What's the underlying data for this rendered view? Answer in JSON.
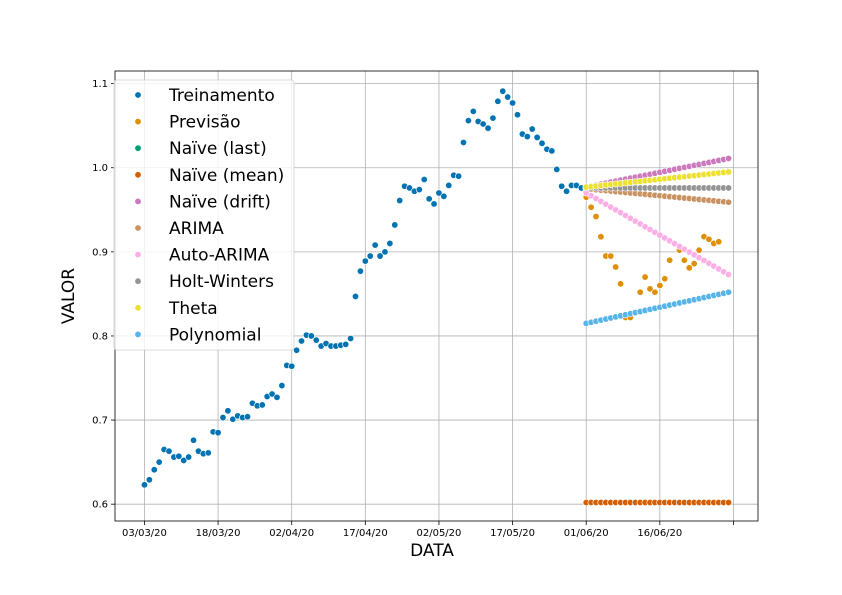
{
  "chart_data": {
    "type": "scatter",
    "title": "",
    "xlabel": "DATA",
    "ylabel": "VALOR",
    "x_tick_labels": [
      "03/03/20",
      "18/03/20",
      "02/04/20",
      "17/04/20",
      "02/05/20",
      "17/05/20",
      "01/06/20",
      "16/06/20",
      ""
    ],
    "x_tick_dates": [
      "2020-03-03",
      "2020-03-18",
      "2020-04-02",
      "2020-04-17",
      "2020-05-02",
      "2020-05-17",
      "2020-06-01",
      "2020-06-16",
      "2020-07-01"
    ],
    "y_tick_labels": [
      "0.6",
      "0.7",
      "0.8",
      "0.9",
      "1.0",
      "1.1"
    ],
    "xlim": [
      "2020-02-26",
      "2020-07-06"
    ],
    "ylim": [
      0.58,
      1.115
    ],
    "grid": true,
    "legend_position": "upper-left",
    "series": [
      {
        "name": "Treinamento",
        "color": "#0173b2",
        "x_start": "2020-03-03",
        "values": [
          0.623,
          0.629,
          0.641,
          0.65,
          0.665,
          0.663,
          0.656,
          0.657,
          0.652,
          0.656,
          0.676,
          0.663,
          0.66,
          0.661,
          0.686,
          0.685,
          0.703,
          0.711,
          0.701,
          0.705,
          0.703,
          0.704,
          0.72,
          0.717,
          0.718,
          0.728,
          0.731,
          0.727,
          0.741,
          0.765,
          0.764,
          0.783,
          0.794,
          0.801,
          0.8,
          0.795,
          0.788,
          0.791,
          0.788,
          0.788,
          0.789,
          0.79,
          0.797,
          0.847,
          0.877,
          0.889,
          0.895,
          0.908,
          0.895,
          0.9,
          0.91,
          0.932,
          0.961,
          0.978,
          0.976,
          0.972,
          0.974,
          0.986,
          0.963,
          0.957,
          0.97,
          0.966,
          0.979,
          0.991,
          0.99,
          1.03,
          1.056,
          1.067,
          1.055,
          1.052,
          1.047,
          1.059,
          1.079,
          1.091,
          1.084,
          1.077,
          1.063,
          1.04,
          1.037,
          1.046,
          1.036,
          1.029,
          1.022,
          1.02,
          0.998,
          0.978,
          0.972,
          0.979,
          0.979,
          0.976
        ]
      },
      {
        "name": "Previsão",
        "color": "#de8f05",
        "x_start": "2020-06-01",
        "values": [
          0.965,
          0.953,
          0.942,
          0.918,
          0.895,
          0.895,
          0.882,
          0.862,
          0.822,
          0.822,
          0.827,
          0.852,
          0.87,
          0.856,
          0.852,
          0.86,
          0.868,
          0.89,
          0.91,
          0.902,
          0.89,
          0.881,
          0.886,
          0.902,
          0.918,
          0.915,
          0.91,
          0.912
        ]
      },
      {
        "name": "Naïve (last)",
        "color": "#029e73",
        "x_start": "2020-06-01",
        "values": [
          0.976,
          0.976,
          0.976,
          0.976,
          0.976,
          0.976,
          0.976,
          0.976,
          0.976,
          0.976,
          0.976,
          0.976,
          0.976,
          0.976,
          0.976,
          0.976,
          0.976,
          0.976,
          0.976,
          0.976,
          0.976,
          0.976,
          0.976,
          0.976,
          0.976,
          0.976,
          0.976,
          0.976,
          0.976,
          0.976
        ]
      },
      {
        "name": "Naïve (mean)",
        "color": "#d55e00",
        "x_start": "2020-06-01",
        "values": [
          0.602,
          0.602,
          0.602,
          0.602,
          0.602,
          0.602,
          0.602,
          0.602,
          0.602,
          0.602,
          0.602,
          0.602,
          0.602,
          0.602,
          0.602,
          0.602,
          0.602,
          0.602,
          0.602,
          0.602,
          0.602,
          0.602,
          0.602,
          0.602,
          0.602,
          0.602,
          0.602,
          0.602,
          0.602,
          0.602
        ]
      },
      {
        "name": "Naïve (drift)",
        "color": "#cc78bc",
        "x_start": "2020-06-01",
        "line_from": 0.977,
        "line_to": 1.011,
        "count": 30
      },
      {
        "name": "ARIMA",
        "color": "#ca9161",
        "x_start": "2020-06-01",
        "line_from": 0.975,
        "line_to": 0.959,
        "count": 30
      },
      {
        "name": "Auto-ARIMA",
        "color": "#fbafe4",
        "x_start": "2020-06-01",
        "line_from": 0.97,
        "line_to": 0.873,
        "count": 30
      },
      {
        "name": "Holt-Winters",
        "color": "#949494",
        "x_start": "2020-06-01",
        "line_from": 0.976,
        "line_to": 0.976,
        "count": 30
      },
      {
        "name": "Theta",
        "color": "#ece133",
        "x_start": "2020-06-01",
        "line_from": 0.977,
        "line_to": 0.995,
        "count": 30
      },
      {
        "name": "Polynomial",
        "color": "#56b4e9",
        "x_start": "2020-06-01",
        "line_from": 0.815,
        "line_to": 0.852,
        "count": 30
      }
    ]
  }
}
